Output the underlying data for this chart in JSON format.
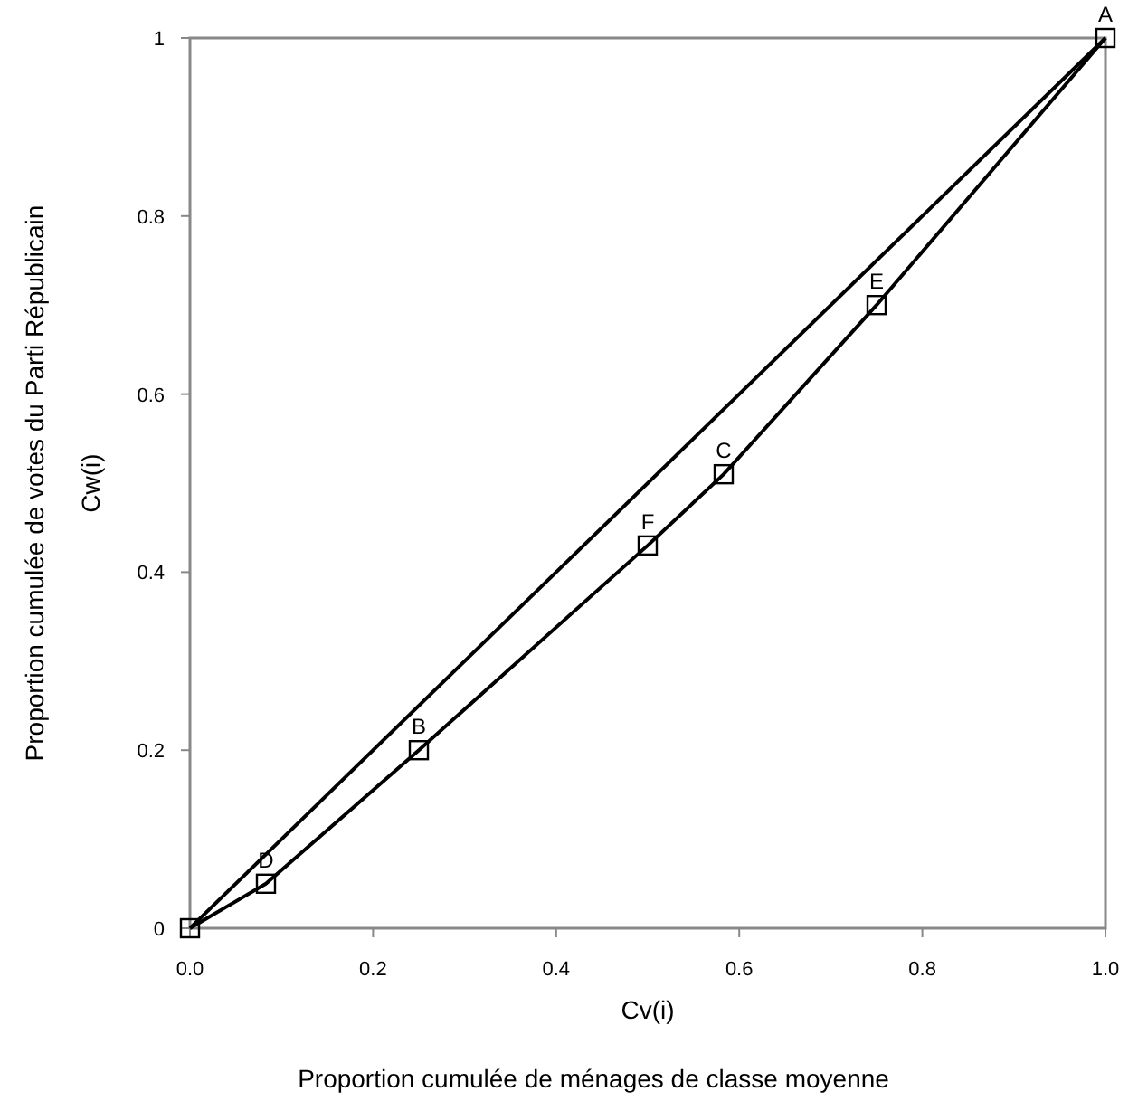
{
  "chart_data": {
    "type": "line",
    "xlabel": "Cv(i)",
    "ylabel": "Cw(i)",
    "xlim": [
      0,
      1
    ],
    "ylim": [
      0,
      1
    ],
    "xticks": [
      {
        "value": 0,
        "label": "0.0"
      },
      {
        "value": 0.2,
        "label": "0.2"
      },
      {
        "value": 0.4,
        "label": "0.4"
      },
      {
        "value": 0.6,
        "label": "0.6"
      },
      {
        "value": 0.8,
        "label": "0.8"
      },
      {
        "value": 1,
        "label": "1.0"
      }
    ],
    "yticks": [
      0,
      0.2,
      0.4,
      0.6,
      0.8,
      1
    ],
    "grid": false,
    "series": [
      {
        "color": "#000000",
        "x": [
          0,
          0.083,
          0.25,
          0.5,
          0.583,
          0.75,
          1
        ],
        "values": [
          0,
          0.05,
          0.2,
          0.43,
          0.51,
          0.7,
          1
        ],
        "marker": "square"
      },
      {
        "color": "#000000",
        "x": [
          0,
          1
        ],
        "values": [
          0,
          1
        ],
        "marker": "none"
      }
    ],
    "annotations": [
      {
        "text": "A",
        "x": 1,
        "y": 1
      },
      {
        "text": "B",
        "x": 0.25,
        "y": 0.2
      },
      {
        "text": "C",
        "x": 0.583,
        "y": 0.51
      },
      {
        "text": "D",
        "x": 0.083,
        "y": 0.05
      },
      {
        "text": "E",
        "x": 0.75,
        "y": 0.7
      },
      {
        "text": "F",
        "x": 0.5,
        "y": 0.43
      },
      "Proportion cumulée de ménages de classe moyenne",
      "Proportion cumulée de votes du Parti Républicain"
    ]
  }
}
